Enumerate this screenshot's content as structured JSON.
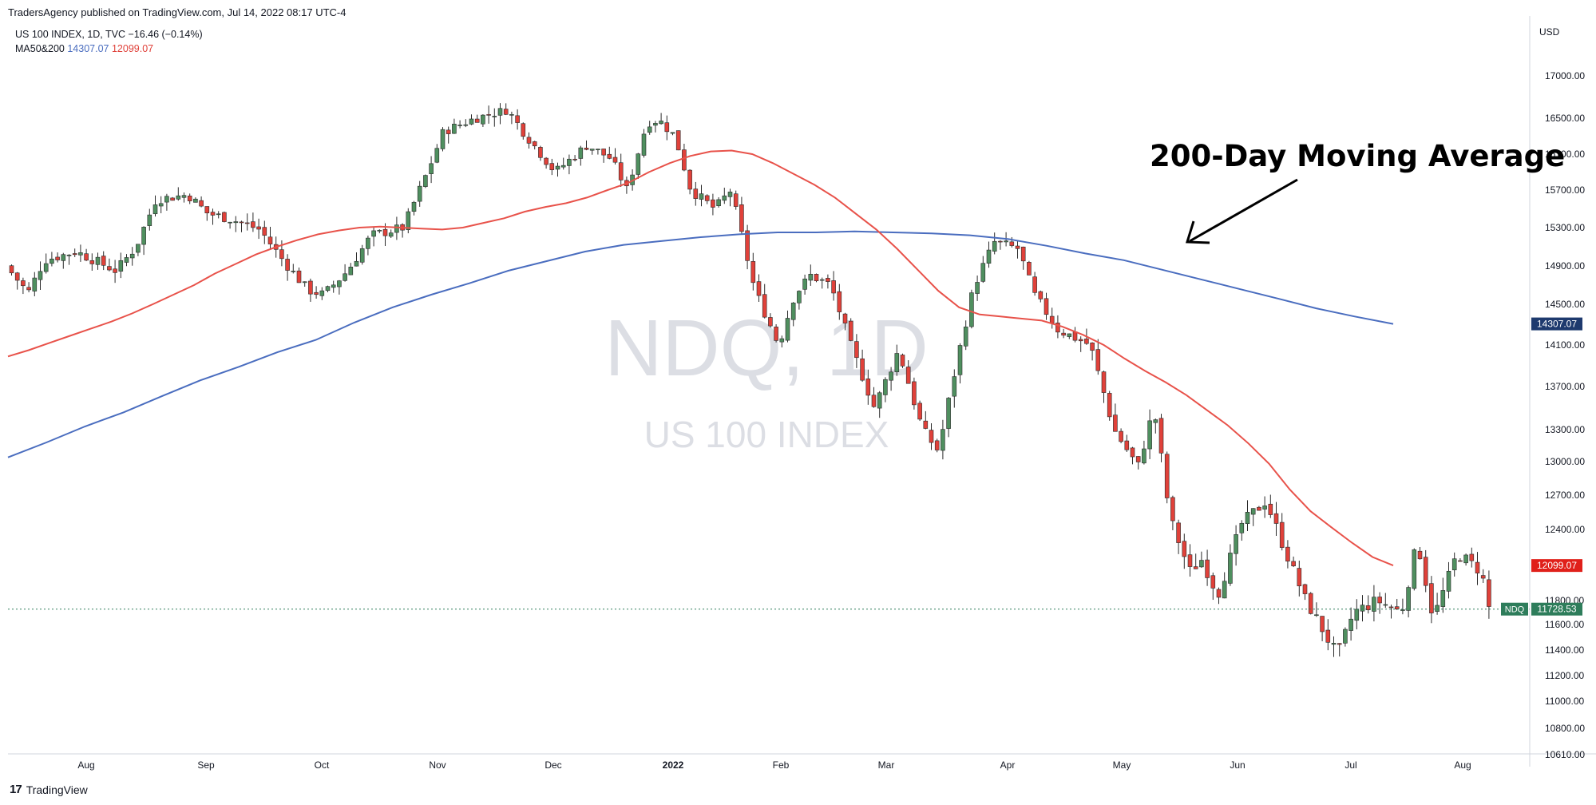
{
  "header": {
    "published": "TradersAgency published on TradingView.com, Jul 14, 2022 08:17 UTC-4"
  },
  "legend": {
    "symbol_line": "US 100 INDEX, 1D, TVC  −16.46 (−0.14%)",
    "ma_label": "MA50&200",
    "ma200_value": "14307.07",
    "ma50_value": "12099.07"
  },
  "watermark": {
    "symbol": "NDQ, 1D",
    "name": "US 100 INDEX"
  },
  "annotation": {
    "text": "200-Day Moving Average"
  },
  "footer": {
    "brand": "TradingView",
    "logo": "tradingview-logo-icon"
  },
  "colors": {
    "up": "#26a69a",
    "up_body": "#4f8f5f",
    "down": "#e0413a",
    "ma50": "#e8524a",
    "ma200": "#4a6dbf",
    "price_label": "#2e7d5b"
  },
  "chart_data": {
    "type": "candlestick",
    "currency": "USD",
    "y_ticks": [
      "17000.00",
      "16500.00",
      "16100.00",
      "15700.00",
      "15300.00",
      "14900.00",
      "14500.00",
      "14100.00",
      "13700.00",
      "13300.00",
      "13000.00",
      "12700.00",
      "12400.00",
      "11800.00",
      "11600.00",
      "11400.00",
      "11200.00",
      "11000.00",
      "10800.00",
      "10610.00"
    ],
    "x_ticks": [
      "Aug",
      "Sep",
      "Oct",
      "Nov",
      "Dec",
      "2022",
      "Feb",
      "Mar",
      "Apr",
      "May",
      "Jun",
      "Jul",
      "Aug"
    ],
    "ylim": [
      10600,
      17400
    ],
    "last_price": {
      "label": "NDQ",
      "value": "11728.53"
    },
    "ma50": {
      "name": "MA50",
      "value": "12099.07",
      "points": [
        [
          0,
          13990
        ],
        [
          1,
          14050
        ],
        [
          2,
          14120
        ],
        [
          3,
          14190
        ],
        [
          4,
          14260
        ],
        [
          5,
          14330
        ],
        [
          6,
          14410
        ],
        [
          7,
          14500
        ],
        [
          8,
          14600
        ],
        [
          9,
          14700
        ],
        [
          10,
          14820
        ],
        [
          11,
          14920
        ],
        [
          12,
          15020
        ],
        [
          13,
          15100
        ],
        [
          14,
          15170
        ],
        [
          15,
          15230
        ],
        [
          16,
          15270
        ],
        [
          17,
          15300
        ],
        [
          18,
          15310
        ],
        [
          19,
          15300
        ],
        [
          20,
          15290
        ],
        [
          21,
          15280
        ],
        [
          22,
          15300
        ],
        [
          23,
          15350
        ],
        [
          24,
          15400
        ],
        [
          25,
          15470
        ],
        [
          26,
          15520
        ],
        [
          27,
          15560
        ],
        [
          28,
          15620
        ],
        [
          29,
          15700
        ],
        [
          30,
          15780
        ],
        [
          31,
          15900
        ],
        [
          32,
          16000
        ],
        [
          33,
          16080
        ],
        [
          34,
          16130
        ],
        [
          35,
          16140
        ],
        [
          36,
          16100
        ],
        [
          37,
          16000
        ],
        [
          38,
          15880
        ],
        [
          39,
          15760
        ],
        [
          40,
          15620
        ],
        [
          41,
          15450
        ],
        [
          42,
          15280
        ],
        [
          43,
          15080
        ],
        [
          44,
          14860
        ],
        [
          45,
          14640
        ],
        [
          46,
          14470
        ],
        [
          47,
          14400
        ],
        [
          48,
          14380
        ],
        [
          49,
          14360
        ],
        [
          50,
          14340
        ],
        [
          51,
          14280
        ],
        [
          52,
          14200
        ],
        [
          53,
          14100
        ],
        [
          54,
          13970
        ],
        [
          55,
          13850
        ],
        [
          56,
          13740
        ],
        [
          57,
          13620
        ],
        [
          58,
          13480
        ],
        [
          59,
          13340
        ],
        [
          60,
          13170
        ],
        [
          61,
          12980
        ],
        [
          62,
          12750
        ],
        [
          63,
          12560
        ],
        [
          64,
          12420
        ],
        [
          65,
          12290
        ],
        [
          66,
          12170
        ],
        [
          67,
          12099.07
        ]
      ]
    },
    "ma200": {
      "name": "MA200",
      "value": "14307.07",
      "points": [
        [
          0,
          13040
        ],
        [
          4,
          13180
        ],
        [
          8,
          13330
        ],
        [
          12,
          13460
        ],
        [
          16,
          13610
        ],
        [
          20,
          13760
        ],
        [
          24,
          13890
        ],
        [
          28,
          14030
        ],
        [
          32,
          14150
        ],
        [
          36,
          14320
        ],
        [
          40,
          14470
        ],
        [
          44,
          14600
        ],
        [
          48,
          14720
        ],
        [
          52,
          14850
        ],
        [
          56,
          14950
        ],
        [
          60,
          15050
        ],
        [
          64,
          15120
        ],
        [
          68,
          15160
        ],
        [
          72,
          15200
        ],
        [
          76,
          15230
        ],
        [
          80,
          15250
        ],
        [
          84,
          15250
        ],
        [
          88,
          15260
        ],
        [
          92,
          15250
        ],
        [
          96,
          15240
        ],
        [
          100,
          15220
        ],
        [
          104,
          15180
        ],
        [
          108,
          15110
        ],
        [
          112,
          15030
        ],
        [
          116,
          14960
        ],
        [
          120,
          14860
        ],
        [
          124,
          14760
        ],
        [
          128,
          14660
        ],
        [
          132,
          14560
        ],
        [
          136,
          14460
        ],
        [
          140,
          14380
        ],
        [
          144,
          14307.07
        ]
      ]
    },
    "series_note": "",
    "candles": [
      [
        14900,
        14920,
        14850,
        14880
      ],
      [
        14880,
        14900,
        14760,
        14790
      ],
      [
        14790,
        14830,
        14700,
        14750
      ],
      [
        14640,
        14700,
        14500,
        14580
      ],
      [
        14580,
        14680,
        14540,
        14650
      ],
      [
        14650,
        14800,
        14620,
        14780
      ],
      [
        14780,
        14880,
        14740,
        14860
      ],
      [
        14860,
        15000,
        14840,
        14960
      ],
      [
        14960,
        15090,
        14930,
        15060
      ],
      [
        15060,
        15100,
        14990,
        15020
      ],
      [
        15020,
        15060,
        14880,
        14910
      ],
      [
        14910,
        15010,
        14880,
        14990
      ],
      [
        14990,
        15080,
        14950,
        15040
      ],
      [
        15040,
        15120,
        15000,
        15100
      ],
      [
        15100,
        15150,
        15050,
        15080
      ],
      [
        15080,
        15120,
        14980,
        15000
      ],
      [
        15000,
        15080,
        14960,
        15060
      ],
      [
        15060,
        15100,
        14990,
        15010
      ],
      [
        15010,
        15060,
        14920,
        14940
      ],
      [
        14940,
        14980,
        14790,
        14810
      ],
      [
        14810,
        14960,
        14780,
        14950
      ],
      [
        14950,
        15240,
        14930,
        15230
      ],
      [
        15230,
        15310,
        15180,
        15280
      ],
      [
        15280,
        15360,
        15250,
        15330
      ],
      [
        15330,
        15440,
        15300,
        15420
      ],
      [
        15420,
        15570,
        15400,
        15540
      ],
      [
        15540,
        15640,
        15500,
        15600
      ],
      [
        15600,
        15680,
        15560,
        15650
      ],
      [
        15650,
        15700,
        15600,
        15680
      ],
      [
        15680,
        15720,
        15620,
        15660
      ],
      [
        15660,
        15720,
        15600,
        15640
      ],
      [
        15640,
        15680,
        15520,
        15540
      ],
      [
        15540,
        15600,
        15460,
        15490
      ],
      [
        15490,
        15590,
        15440,
        15570
      ],
      [
        15570,
        15600,
        15480,
        15500
      ],
      [
        15500,
        15540,
        15360,
        15410
      ],
      [
        15410,
        15470,
        15380,
        15440
      ]
    ]
  }
}
